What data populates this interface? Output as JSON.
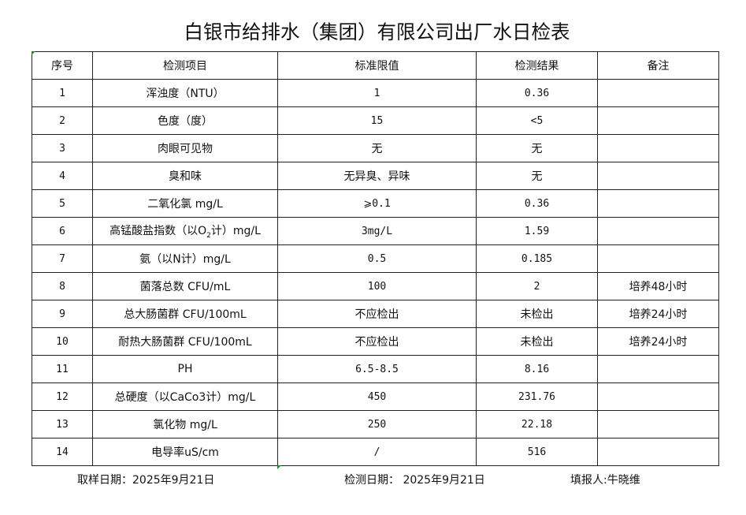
{
  "title": "白银市给排水（集团）有限公司出厂水日检表",
  "table": {
    "headers": [
      "序号",
      "检测项目",
      "标准限值",
      "检测结果",
      "备注"
    ],
    "rows": [
      {
        "no": "1",
        "item": "浑浊度（NTU）",
        "limit": "1",
        "result": "0.36",
        "note": ""
      },
      {
        "no": "2",
        "item": "色度（度）",
        "limit": "15",
        "result": "<5",
        "note": ""
      },
      {
        "no": "3",
        "item": "肉眼可见物",
        "limit": "无",
        "result": "无",
        "note": ""
      },
      {
        "no": "4",
        "item": "臭和味",
        "limit": "无异臭、异味",
        "result": "无",
        "note": ""
      },
      {
        "no": "5",
        "item": "二氧化氯 mg/L",
        "limit": "⩾0.1",
        "result": "0.36",
        "note": ""
      },
      {
        "no": "6",
        "item": "高锰酸盐指数（以O",
        "item_sub": "2",
        "item_after": "计）mg/L",
        "limit": "3mg/L",
        "result": "1.59",
        "note": ""
      },
      {
        "no": "7",
        "item": "氨（以N计）mg/L",
        "limit": "0.5",
        "result": "0.185",
        "note": ""
      },
      {
        "no": "8",
        "item": "菌落总数 CFU/mL",
        "limit": "100",
        "result": "2",
        "note": "培养48小时"
      },
      {
        "no": "9",
        "item": "总大肠菌群 CFU/100mL",
        "limit": "不应检出",
        "result": "未检出",
        "note": "培养24小时"
      },
      {
        "no": "10",
        "item": "耐热大肠菌群 CFU/100mL",
        "limit": "不应检出",
        "result": "未检出",
        "note": "培养24小时"
      },
      {
        "no": "11",
        "item": "PH",
        "limit": "6.5-8.5",
        "result": "8.16",
        "note": ""
      },
      {
        "no": "12",
        "item": "总硬度（以CaCo3计）mg/L",
        "limit": "450",
        "result": "231.76",
        "note": ""
      },
      {
        "no": "13",
        "item": "氯化物 mg/L",
        "limit": "250",
        "result": "22.18",
        "note": ""
      },
      {
        "no": "14",
        "item": "电导率uS/cm",
        "limit": "/",
        "result": "516",
        "note": ""
      }
    ]
  },
  "footer": {
    "sampling_date": "取样日期：2025年9月21日",
    "test_date": "检测日期： 2025年9月21日",
    "reporter": "填报人:牛晓维"
  },
  "colors": {
    "cell_marker": "#1e8c2e",
    "border": "#222222"
  }
}
